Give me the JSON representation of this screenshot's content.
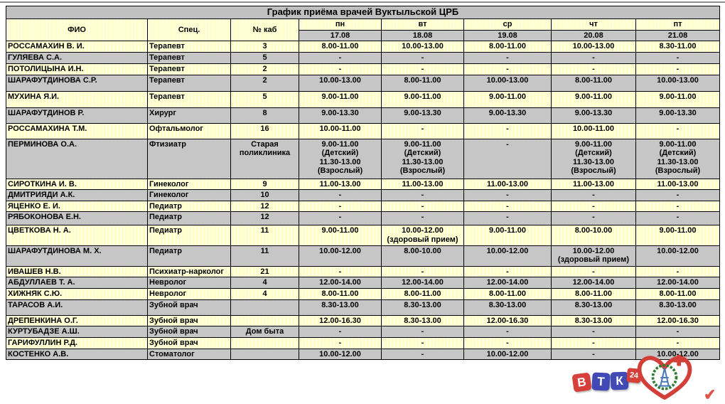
{
  "title": "График приёма врачей Вуктыльской ЦРБ",
  "table": {
    "columns": {
      "fio": "ФИО",
      "spec": "Спец.",
      "cab": "№ каб"
    },
    "days": [
      {
        "name": "пн",
        "date": "17.08"
      },
      {
        "name": "вт",
        "date": "18.08"
      },
      {
        "name": "ср",
        "date": "19.08"
      },
      {
        "name": "чт",
        "date": "20.08"
      },
      {
        "name": "пт",
        "date": "21.08"
      }
    ],
    "rows": [
      {
        "fio": "РОССАМАХИН В. И.",
        "spec": "Терапевт",
        "cab": "3",
        "shade": "yellow",
        "schedule": [
          "8.00-11.00",
          "10.00-13.00",
          "8.00-11.00",
          "10.00-13.00",
          "8.30-11.00"
        ]
      },
      {
        "fio": "ГУЛЯЕВА С.А.",
        "spec": "Терапевт",
        "cab": "5",
        "shade": "gray",
        "schedule": [
          "-",
          "-",
          "-",
          "-",
          "-"
        ]
      },
      {
        "fio": "ПОТОЛИЦЫНА И.Н.",
        "spec": "Терапевт",
        "cab": "2",
        "shade": "yellow",
        "schedule": [
          "-",
          "-",
          "-",
          "-",
          "-"
        ]
      },
      {
        "fio": "ШАРАФУТДИНОВА С.Р.",
        "spec": "Терапевт",
        "cab": "2",
        "shade": "gray",
        "schedule": [
          "10.00-13.00",
          "8.00-11.00",
          "10.00-13.00",
          "8.00-11.00",
          "10.00-13.00"
        ]
      },
      {
        "fio": "МУХИНА Я.И.",
        "spec": "Терапевт",
        "cab": "5",
        "shade": "yellow",
        "schedule": [
          "9.00-11.00",
          "9.00-11.00",
          "9.00-11.00",
          "9.00-11.00",
          "9.00-11.00"
        ]
      },
      {
        "fio": "ШАРАФУТДИНОВ Р.",
        "spec": "Хирург",
        "cab": "8",
        "shade": "gray",
        "schedule": [
          "9.00-13.30",
          "9.00-13.30",
          "9.00-13.30",
          "9.00-13.30",
          "9.00-13.30"
        ]
      },
      {
        "fio": "РОССАМАХИНА Т.М.",
        "spec": "Офтальмолог",
        "cab": "16",
        "shade": "yellow",
        "schedule": [
          "10.00-11.00",
          "-",
          "-",
          "10.00-11.00",
          "-"
        ]
      },
      {
        "fio": "ПЕРМИНОВА О.А.",
        "spec": "Фтизиатр",
        "cab": "Старая\nполиклиника",
        "shade": "gray",
        "schedule": [
          "9.00-11.00\n(Детский)\n11.30-13.00\n(Взрослый)",
          "9.00-11.00\n(Детский)\n11.30-13.00\n(Взрослый)",
          "-",
          "9.00-11.00\n(Детский)\n11.30-13.00\n(Взрослый)",
          "9.00-11.00\n(Детский)\n11.30-13.00\n(Взрослый)"
        ]
      },
      {
        "fio": "СИРОТКИНА И. В.",
        "spec": "Гинеколог",
        "cab": "9",
        "shade": "yellow",
        "schedule": [
          "11.00-13.00",
          "11.00-13.00",
          "11.00-13.00",
          "11.00-13.00",
          "11.00-13.00"
        ]
      },
      {
        "fio": "ДМИТРИЯДИ А.К.",
        "spec": "Гинеколог",
        "cab": "10",
        "shade": "gray",
        "schedule": [
          "-",
          "-",
          "-",
          "-",
          "-"
        ]
      },
      {
        "fio": "ЯЦЕНКО Е. И.",
        "spec": "Педиатр",
        "cab": "12",
        "shade": "yellow",
        "schedule": [
          "-",
          "-",
          "-",
          "-",
          "-"
        ]
      },
      {
        "fio": "РЯБОКОНОВА Е.Н.",
        "spec": "Педиатр",
        "cab": "12",
        "shade": "gray",
        "schedule": [
          "-",
          "-",
          "-",
          "-",
          "-"
        ]
      },
      {
        "fio": "ЦВЕТКОВА Н. А.",
        "spec": "Педиатр",
        "cab": "11",
        "shade": "yellow",
        "schedule": [
          "9.00-11.00",
          "10.00-12.00\n(здоровый прием)",
          "9.00-11.00",
          "8.00-10.00",
          "9.00-11.00"
        ]
      },
      {
        "fio": "ШАРАФУТДИНОВА М. Х.",
        "spec": "Педиатр",
        "cab": "11",
        "shade": "gray",
        "schedule": [
          "10.00-12.00",
          "8.00-10.00",
          "10.00-12.00",
          "10.00-12.00\n(здоровый прием)",
          "10.00-12.00"
        ]
      },
      {
        "fio": "ИВАШЕВ Н.В.",
        "spec": "Психиатр-нарколог",
        "cab": "21",
        "shade": "yellow",
        "schedule": [
          "-",
          "-",
          "-",
          "-",
          "-"
        ]
      },
      {
        "fio": "АБДУЛЛАЕВ Т. А.",
        "spec": "Невролог",
        "cab": "4",
        "shade": "gray",
        "schedule": [
          "12.00-14.00",
          "12.00-14.00",
          "12.00-14.00",
          "12.00-14.00",
          "12.00-14.00"
        ]
      },
      {
        "fio": "ХИЖНЯК С.Ю.",
        "spec": "Невролог",
        "cab": "4",
        "shade": "yellow",
        "schedule": [
          "8.00-11.00",
          "8.00-11.00",
          "8.00-11.00",
          "8.00-11.00",
          "8.00-11.00"
        ]
      },
      {
        "fio": "ТАРАСОВ А.И.",
        "spec": "Зубной врач",
        "cab": "",
        "shade": "gray",
        "schedule": [
          "8.30-13.00",
          "8.30-13.00",
          "8.30-13.00",
          "8.30-13.00",
          "8.30-13.00"
        ]
      },
      {
        "fio": "ДРЕПЕНКИНА О.Г.",
        "spec": "Зубной врач",
        "cab": "",
        "shade": "yellow",
        "schedule": [
          "12.00-16.30",
          "8.30-13.00",
          "12.00-16.30",
          "8.30-13.00",
          "12.00-16.30"
        ]
      },
      {
        "fio": "КУРТУБАДЗЕ А.Ш.",
        "spec": "Зубной врач",
        "cab": "Дом быта",
        "shade": "gray",
        "schedule": [
          "-",
          "-",
          "-",
          "-",
          "-"
        ]
      },
      {
        "fio": "ГАРИФУЛЛИН Р.Д.",
        "spec": "Зубной врач",
        "cab": "",
        "shade": "yellow",
        "schedule": [
          "-",
          "-",
          "-",
          "-",
          "-"
        ]
      },
      {
        "fio": "КОСТЕНКО А.В.",
        "spec": "Стоматолог",
        "cab": "",
        "shade": "gray",
        "schedule": [
          "10.00-12.00",
          "-",
          "10.00-12.00",
          "-",
          "10.00-12.00"
        ]
      }
    ]
  },
  "logos": {
    "vtk": {
      "letters": [
        "В",
        "Т",
        "К"
      ],
      "badge": "24"
    },
    "heart_emblem": "медицинская эмблема-сердце",
    "corner_mark": "✔"
  },
  "colors": {
    "row_yellow": "#ffffc6",
    "row_gray": "#c6c6c6",
    "header_gray": "#c0c0c0",
    "border": "#000000",
    "vtk_red": "#d6403a",
    "vtk_blue": "#4149b4",
    "heart_red": "#d23f38",
    "wreath_green": "#2e7d32",
    "emblem_blue": "#4a7ab5"
  }
}
